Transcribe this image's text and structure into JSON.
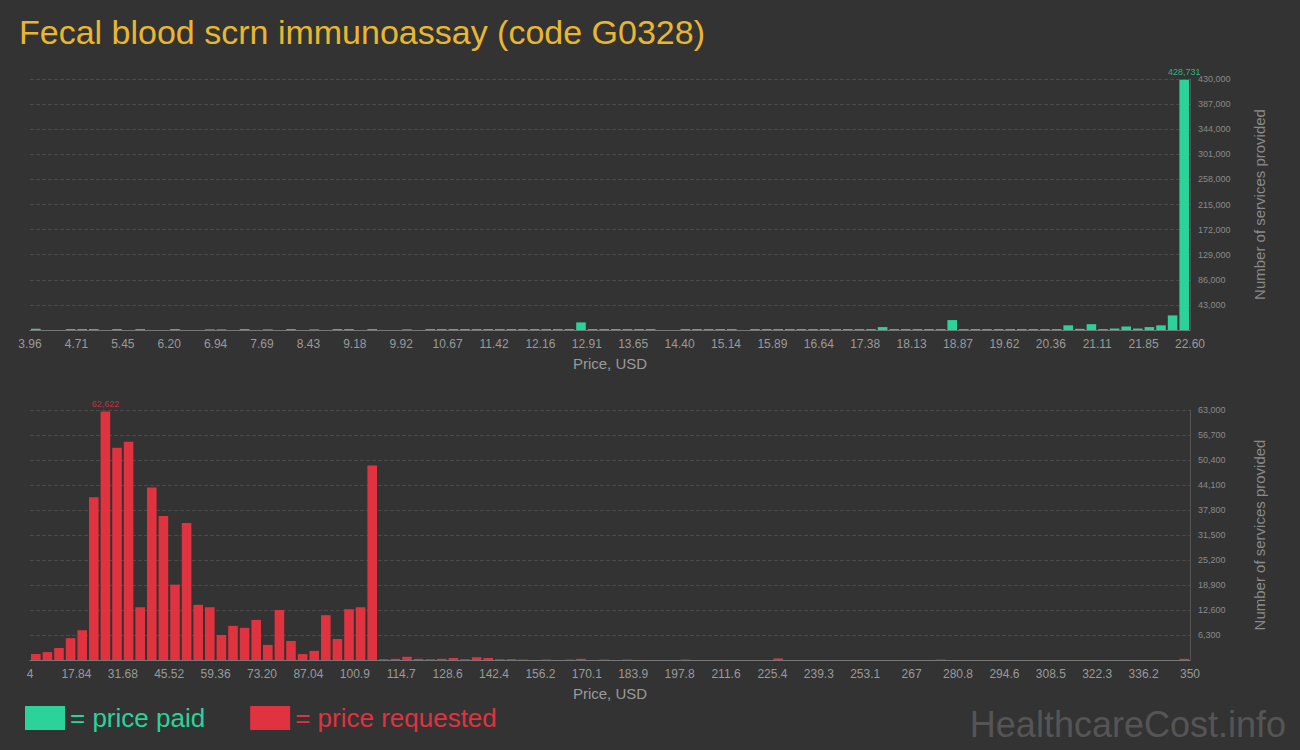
{
  "chart_data": [
    {
      "type": "histogram",
      "title": "Fecal blood scrn immunoassay (code G0328)",
      "xlabel": "Price, USD",
      "ylabel": "Number of services provided",
      "series": [
        {
          "name": "= price paid",
          "color": "#2bd39a",
          "bins": [
            3.96,
            4.1464,
            4.3328,
            4.5192,
            4.7056,
            4.892,
            5.0784,
            5.2648,
            5.4512,
            5.6376,
            5.824,
            6.0104,
            6.1968,
            6.3832,
            6.5696,
            6.756,
            6.9424,
            7.1288,
            7.3152,
            7.5016,
            7.688,
            7.8744,
            8.0608,
            8.2472,
            8.4336,
            8.62,
            8.8064,
            8.9928,
            9.1792,
            9.3656,
            9.552,
            9.7384,
            9.9248,
            10.1112,
            10.2976,
            10.484,
            10.6704,
            10.8568,
            11.0432,
            11.2296,
            11.416,
            11.6024,
            11.7888,
            11.9752,
            12.1616,
            12.348,
            12.5344,
            12.7208,
            12.9072,
            13.0936,
            13.28,
            13.4664,
            13.6528,
            13.8392,
            14.0256,
            14.212,
            14.3984,
            14.5848,
            14.7712,
            14.9576,
            15.144,
            15.3304,
            15.5168,
            15.7032,
            15.8896,
            16.076,
            16.2624,
            16.4488,
            16.6352,
            16.8216,
            17.008,
            17.1944,
            17.3808,
            17.5672,
            17.7536,
            17.94,
            18.1264,
            18.3128,
            18.4992,
            18.6856,
            18.872,
            19.0584,
            19.2448,
            19.4312,
            19.6176,
            19.804,
            19.9904,
            20.1768,
            20.3632,
            20.5496,
            20.736,
            20.9224,
            21.1088,
            21.2952,
            21.4816,
            21.668,
            21.8544,
            22.0408,
            22.2272,
            22.4136,
            22.6
          ],
          "values": [
            2000,
            0,
            0,
            1500,
            1500,
            1500,
            0,
            1500,
            0,
            1500,
            0,
            0,
            1500,
            0,
            0,
            1000,
            1000,
            0,
            1500,
            0,
            1000,
            0,
            1500,
            0,
            1000,
            0,
            1500,
            1500,
            0,
            1500,
            0,
            0,
            1000,
            0,
            1500,
            1500,
            1500,
            1500,
            1500,
            1500,
            1500,
            1500,
            1500,
            1500,
            1500,
            1500,
            1500,
            13000,
            1500,
            1500,
            1500,
            1500,
            1500,
            1500,
            0,
            0,
            1500,
            1500,
            1500,
            1500,
            1500,
            0,
            1500,
            1500,
            1500,
            1500,
            1500,
            1500,
            1500,
            1500,
            1500,
            1500,
            1500,
            5000,
            1500,
            1500,
            1500,
            1500,
            1500,
            17000,
            1500,
            1500,
            1500,
            1500,
            1500,
            1500,
            1500,
            1500,
            1500,
            8000,
            2000,
            10000,
            1500,
            2500,
            6000,
            2500,
            5000,
            8000,
            25000,
            428731
          ]
        }
      ],
      "xlim": [
        3.96,
        22.6
      ],
      "ylim": [
        0,
        430000
      ],
      "xticks": [
        3.96,
        {
          "value": 4.7056,
          "label": "4.71"
        },
        {
          "value": 5.4512,
          "label": "5.45"
        },
        {
          "value": 6.1968,
          "label": "6.20"
        },
        {
          "value": 6.9424,
          "label": "6.94"
        },
        {
          "value": 7.688,
          "label": "7.69"
        },
        {
          "value": 8.4336,
          "label": "8.43"
        },
        {
          "value": 9.1792,
          "label": "9.18"
        },
        {
          "value": 9.9248,
          "label": "9.92"
        },
        {
          "value": 10.6704,
          "label": "10.67"
        },
        {
          "value": 11.416,
          "label": "11.42"
        },
        {
          "value": 12.1616,
          "label": "12.16"
        },
        {
          "value": 12.9072,
          "label": "12.91"
        },
        {
          "value": 13.6528,
          "label": "13.65"
        },
        {
          "value": 14.3984,
          "label": "14.40"
        },
        {
          "value": 15.144,
          "label": "15.14"
        },
        {
          "value": 15.8896,
          "label": "15.89"
        },
        {
          "value": 16.6352,
          "label": "16.64"
        },
        {
          "value": 17.3808,
          "label": "17.38"
        },
        {
          "value": 18.1264,
          "label": "18.13"
        },
        {
          "value": 18.872,
          "label": "18.87"
        },
        {
          "value": 19.6176,
          "label": "19.62"
        },
        {
          "value": 20.3632,
          "label": "20.36"
        },
        {
          "value": 21.1088,
          "label": "21.11"
        },
        {
          "value": 21.8544,
          "label": "21.85"
        },
        {
          "value": 22.6,
          "label": "22.60"
        }
      ],
      "yticks": [
        {
          "value": 43000,
          "label": "43,000"
        },
        {
          "value": 86000,
          "label": "86,000"
        },
        {
          "value": 129000,
          "label": "129,000"
        },
        {
          "value": 172000,
          "label": "172,000"
        },
        {
          "value": 215000,
          "label": "215,000"
        },
        {
          "value": 258000,
          "label": "258,000"
        },
        {
          "value": 301000,
          "label": "301,000"
        },
        {
          "value": 344000,
          "label": "344,000"
        },
        {
          "value": 387000,
          "label": "387,000"
        },
        {
          "value": 430000,
          "label": "430,000"
        }
      ],
      "grid": true,
      "legend": "lower left",
      "annotations": [
        {
          "text": "428,731",
          "x": 22.5068,
          "y": 428731
        }
      ]
    },
    {
      "type": "histogram",
      "xlabel": "Price, USD",
      "ylabel": "Number of services provided",
      "series": [
        {
          "name": "= price requested",
          "color": "#e0323f",
          "bins": [
            4,
            7.46,
            10.92,
            14.38,
            17.84,
            21.3,
            24.76,
            28.22,
            31.68,
            35.14,
            38.6,
            42.06,
            45.52,
            48.98,
            52.44,
            55.9,
            59.36,
            62.82,
            66.28,
            69.74,
            73.2,
            76.66,
            80.12,
            83.58,
            87.04,
            90.5,
            93.96,
            97.42,
            100.88,
            104.34,
            107.8,
            111.26,
            114.72,
            118.18,
            121.64,
            125.1,
            128.56,
            132.02,
            135.48,
            138.94,
            142.4,
            145.86,
            149.32,
            152.78,
            156.24,
            159.7,
            163.16,
            166.62,
            170.08,
            173.54,
            177,
            180.46,
            183.92,
            187.38,
            190.84,
            194.3,
            197.76,
            201.22,
            204.68,
            208.14,
            211.6,
            215.06,
            218.52,
            221.98,
            225.44,
            228.9,
            232.36,
            235.82,
            239.28,
            242.74,
            246.2,
            249.66,
            253.12,
            256.58,
            260.04,
            263.5,
            266.96,
            270.42,
            273.88,
            277.34,
            280.8,
            284.26,
            287.72,
            291.18,
            294.64,
            298.1,
            301.56,
            305.02,
            308.48,
            311.94,
            315.4,
            318.86,
            322.32,
            325.78,
            329.24,
            332.7,
            336.16,
            339.62,
            343.08,
            346.54,
            350
          ],
          "values": [
            1500,
            2000,
            3000,
            5500,
            7500,
            41000,
            62622,
            53500,
            55000,
            13300,
            43500,
            36300,
            19000,
            34500,
            13900,
            13300,
            6300,
            8600,
            8100,
            10100,
            3800,
            12600,
            4800,
            1500,
            2300,
            11300,
            5300,
            12800,
            13300,
            49000,
            200,
            300,
            800,
            300,
            200,
            300,
            500,
            200,
            700,
            500,
            200,
            200,
            100,
            0,
            100,
            0,
            100,
            300,
            0,
            100,
            0,
            100,
            0,
            0,
            0,
            0,
            100,
            0,
            0,
            0,
            0,
            0,
            0,
            0,
            400,
            0,
            0,
            0,
            0,
            0,
            0,
            0,
            0,
            0,
            0,
            0,
            0,
            0,
            100,
            0,
            0,
            0,
            0,
            0,
            0,
            0,
            0,
            0,
            0,
            0,
            0,
            0,
            0,
            0,
            0,
            0,
            0,
            0,
            0,
            300
          ]
        }
      ],
      "xlim": [
        4,
        350
      ],
      "ylim": [
        0,
        63000
      ],
      "xticks": [
        4,
        17.84,
        31.68,
        45.52,
        59.36,
        {
          "value": 73.2,
          "label": "73.20"
        },
        87.04,
        {
          "value": 100.88,
          "label": "100.9"
        },
        {
          "value": 114.72,
          "label": "114.7"
        },
        {
          "value": 128.56,
          "label": "128.6"
        },
        142.4,
        {
          "value": 156.24,
          "label": "156.2"
        },
        {
          "value": 170.08,
          "label": "170.1"
        },
        {
          "value": 183.92,
          "label": "183.9"
        },
        {
          "value": 197.76,
          "label": "197.8"
        },
        211.6,
        {
          "value": 225.44,
          "label": "225.4"
        },
        {
          "value": 239.28,
          "label": "239.3"
        },
        {
          "value": 253.12,
          "label": "253.1"
        },
        {
          "value": 266.96,
          "label": "267"
        },
        280.8,
        {
          "value": 294.64,
          "label": "294.6"
        },
        {
          "value": 308.48,
          "label": "308.5"
        },
        {
          "value": 322.32,
          "label": "322.3"
        },
        {
          "value": 336.16,
          "label": "336.2"
        },
        350
      ],
      "yticks": [
        {
          "value": 6300,
          "label": "6,300"
        },
        {
          "value": 12600,
          "label": "12,600"
        },
        {
          "value": 18900,
          "label": "18,900"
        },
        {
          "value": 25200,
          "label": "25,200"
        },
        {
          "value": 31500,
          "label": "31,500"
        },
        {
          "value": 37800,
          "label": "37,800"
        },
        {
          "value": 44100,
          "label": "44,100"
        },
        {
          "value": 50400,
          "label": "50,400"
        },
        {
          "value": 56700,
          "label": "56,700"
        },
        {
          "value": 63000,
          "label": "63,000"
        }
      ],
      "grid": true,
      "legend": "lower left",
      "annotations": [
        {
          "text": "62,622",
          "x": 26.49,
          "y": 62622
        },
        {
          "text": "HealthcareCost.info"
        }
      ]
    }
  ]
}
